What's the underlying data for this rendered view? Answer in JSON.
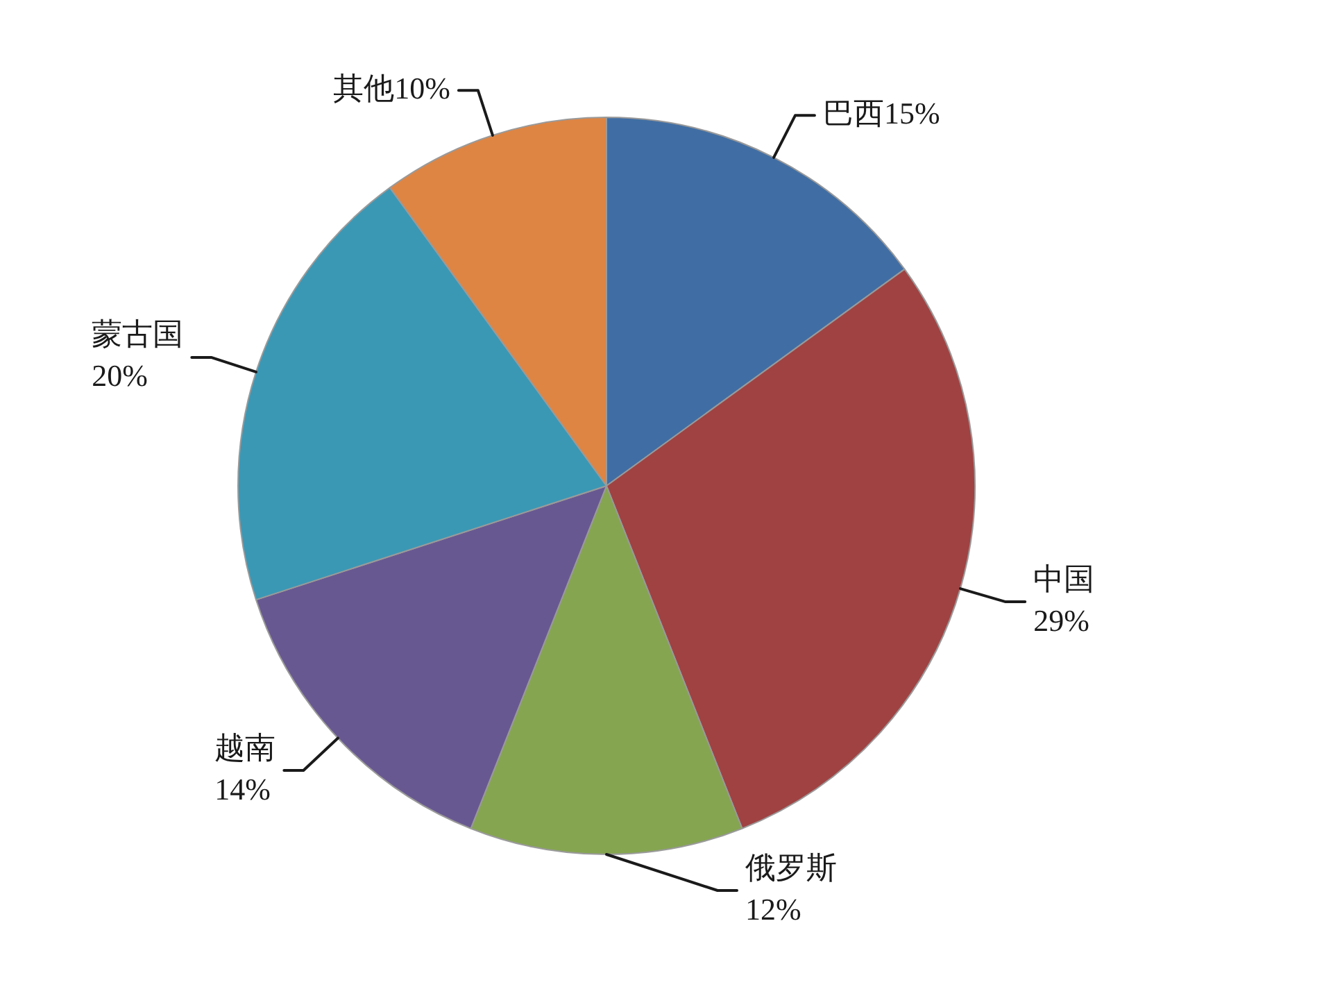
{
  "chart_data": {
    "type": "pie",
    "categories": [
      "巴西",
      "中国",
      "俄罗斯",
      "越南",
      "蒙古国",
      "其他"
    ],
    "values": [
      15,
      29,
      12,
      14,
      20,
      10
    ],
    "colors": [
      "#406ea4",
      "#a04242",
      "#85a550",
      "#685891",
      "#3a98b5",
      "#de8544"
    ],
    "value_labels": [
      "15%",
      "29%",
      "12%",
      "14%",
      "20%",
      "10%"
    ],
    "legend": false
  }
}
